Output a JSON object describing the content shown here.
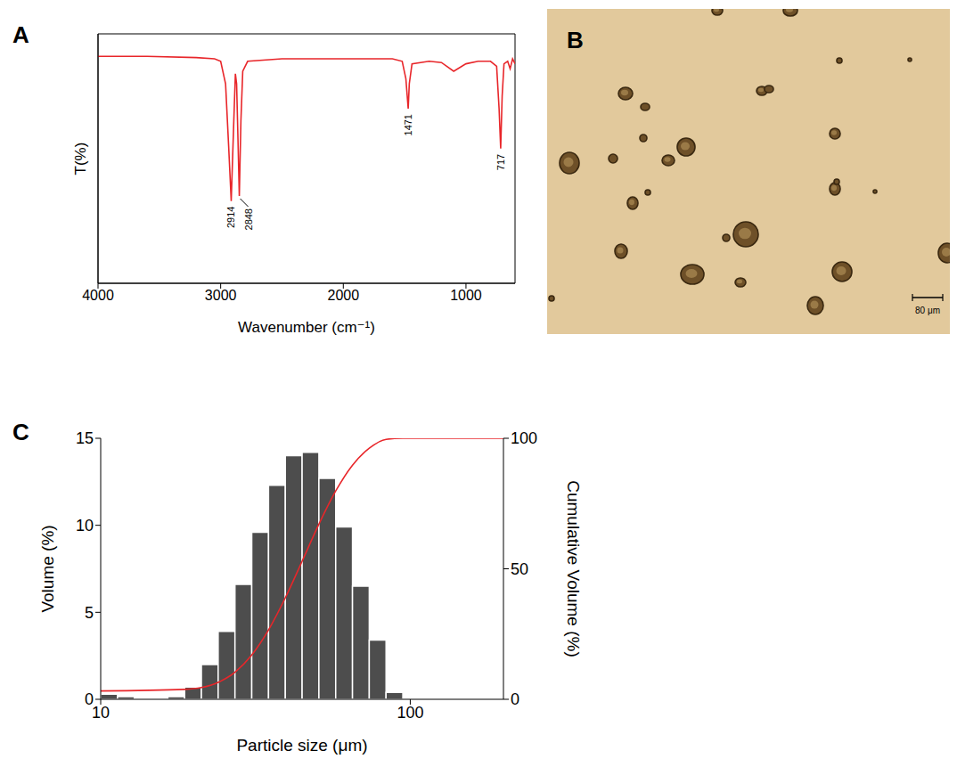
{
  "chart_data": [
    {
      "panel": "A",
      "type": "line",
      "x_label": "Wavenumber (cm⁻¹)",
      "y_label": "T(%)",
      "x": [
        4000,
        3600,
        3200,
        3050,
        3000,
        2960,
        2935,
        2914,
        2895,
        2880,
        2870,
        2860,
        2848,
        2835,
        2820,
        2780,
        2500,
        2200,
        2000,
        1800,
        1600,
        1520,
        1490,
        1471,
        1462,
        1440,
        1300,
        1200,
        1100,
        1000,
        900,
        800,
        750,
        730,
        717,
        705,
        690,
        660,
        640,
        620,
        600
      ],
      "values": [
        91,
        91,
        90.5,
        90,
        89,
        80,
        55,
        33,
        62,
        84,
        80,
        60,
        35,
        65,
        85,
        89,
        90,
        90,
        90,
        90,
        90,
        89,
        82,
        70,
        80,
        88,
        89,
        88.5,
        85,
        88,
        89,
        89,
        87,
        70,
        54,
        75,
        88,
        89,
        86,
        90,
        88
      ],
      "color": "#e8262a",
      "xlim": [
        4000,
        600
      ],
      "xticks": [
        4000,
        3000,
        2000,
        1000
      ],
      "ylim": [
        0,
        100
      ],
      "yticks": [],
      "tick_labels": "x",
      "annotations": [
        2914,
        2848,
        1471,
        717
      ]
    },
    {
      "panel": "B",
      "type": "image",
      "scale_bar": "80 μm"
    },
    {
      "panel": "C",
      "type": "histogram",
      "x_label": "Particle size (μm)",
      "y_label": "Volume (%)",
      "y2_label": "Cumulative Volume (%)",
      "log": "x",
      "bins": [
        10.0,
        11.33,
        12.84,
        14.54,
        16.48,
        18.67,
        21.15,
        23.96,
        27.15,
        30.76,
        34.85,
        39.49,
        44.74,
        50.69,
        57.43,
        65.07,
        73.72,
        83.52,
        94.63
      ],
      "xlim": [
        10,
        200
      ],
      "xticks": [
        10,
        100
      ],
      "ylim": [
        0,
        15
      ],
      "yticks": [
        0,
        5,
        10,
        15
      ],
      "y2lim": [
        0,
        100
      ],
      "y2ticks": [
        0,
        50,
        100
      ],
      "series": [
        {
          "type": "bar",
          "color": "#4d4d4d",
          "values": [
            0.3,
            0.15,
            0,
            0,
            0.15,
            0.7,
            2.0,
            3.9,
            6.6,
            9.6,
            12.3,
            14.0,
            14.2,
            12.7,
            9.9,
            6.5,
            3.4,
            0.4
          ]
        },
        {
          "type": "line",
          "axis": "y2",
          "color": "#e8262a",
          "x": [
            10,
            18.67,
            21.15,
            23.96,
            27.15,
            30.76,
            34.85,
            39.49,
            44.74,
            50.69,
            57.43,
            65.07,
            73.72,
            83.52,
            94.63,
            200
          ],
          "values": [
            3.2,
            3.8,
            4.5,
            6.5,
            10.4,
            17.0,
            26.6,
            38.9,
            52.9,
            67.1,
            79.8,
            89.7,
            96.2,
            99.6,
            100,
            100
          ]
        }
      ]
    }
  ]
}
